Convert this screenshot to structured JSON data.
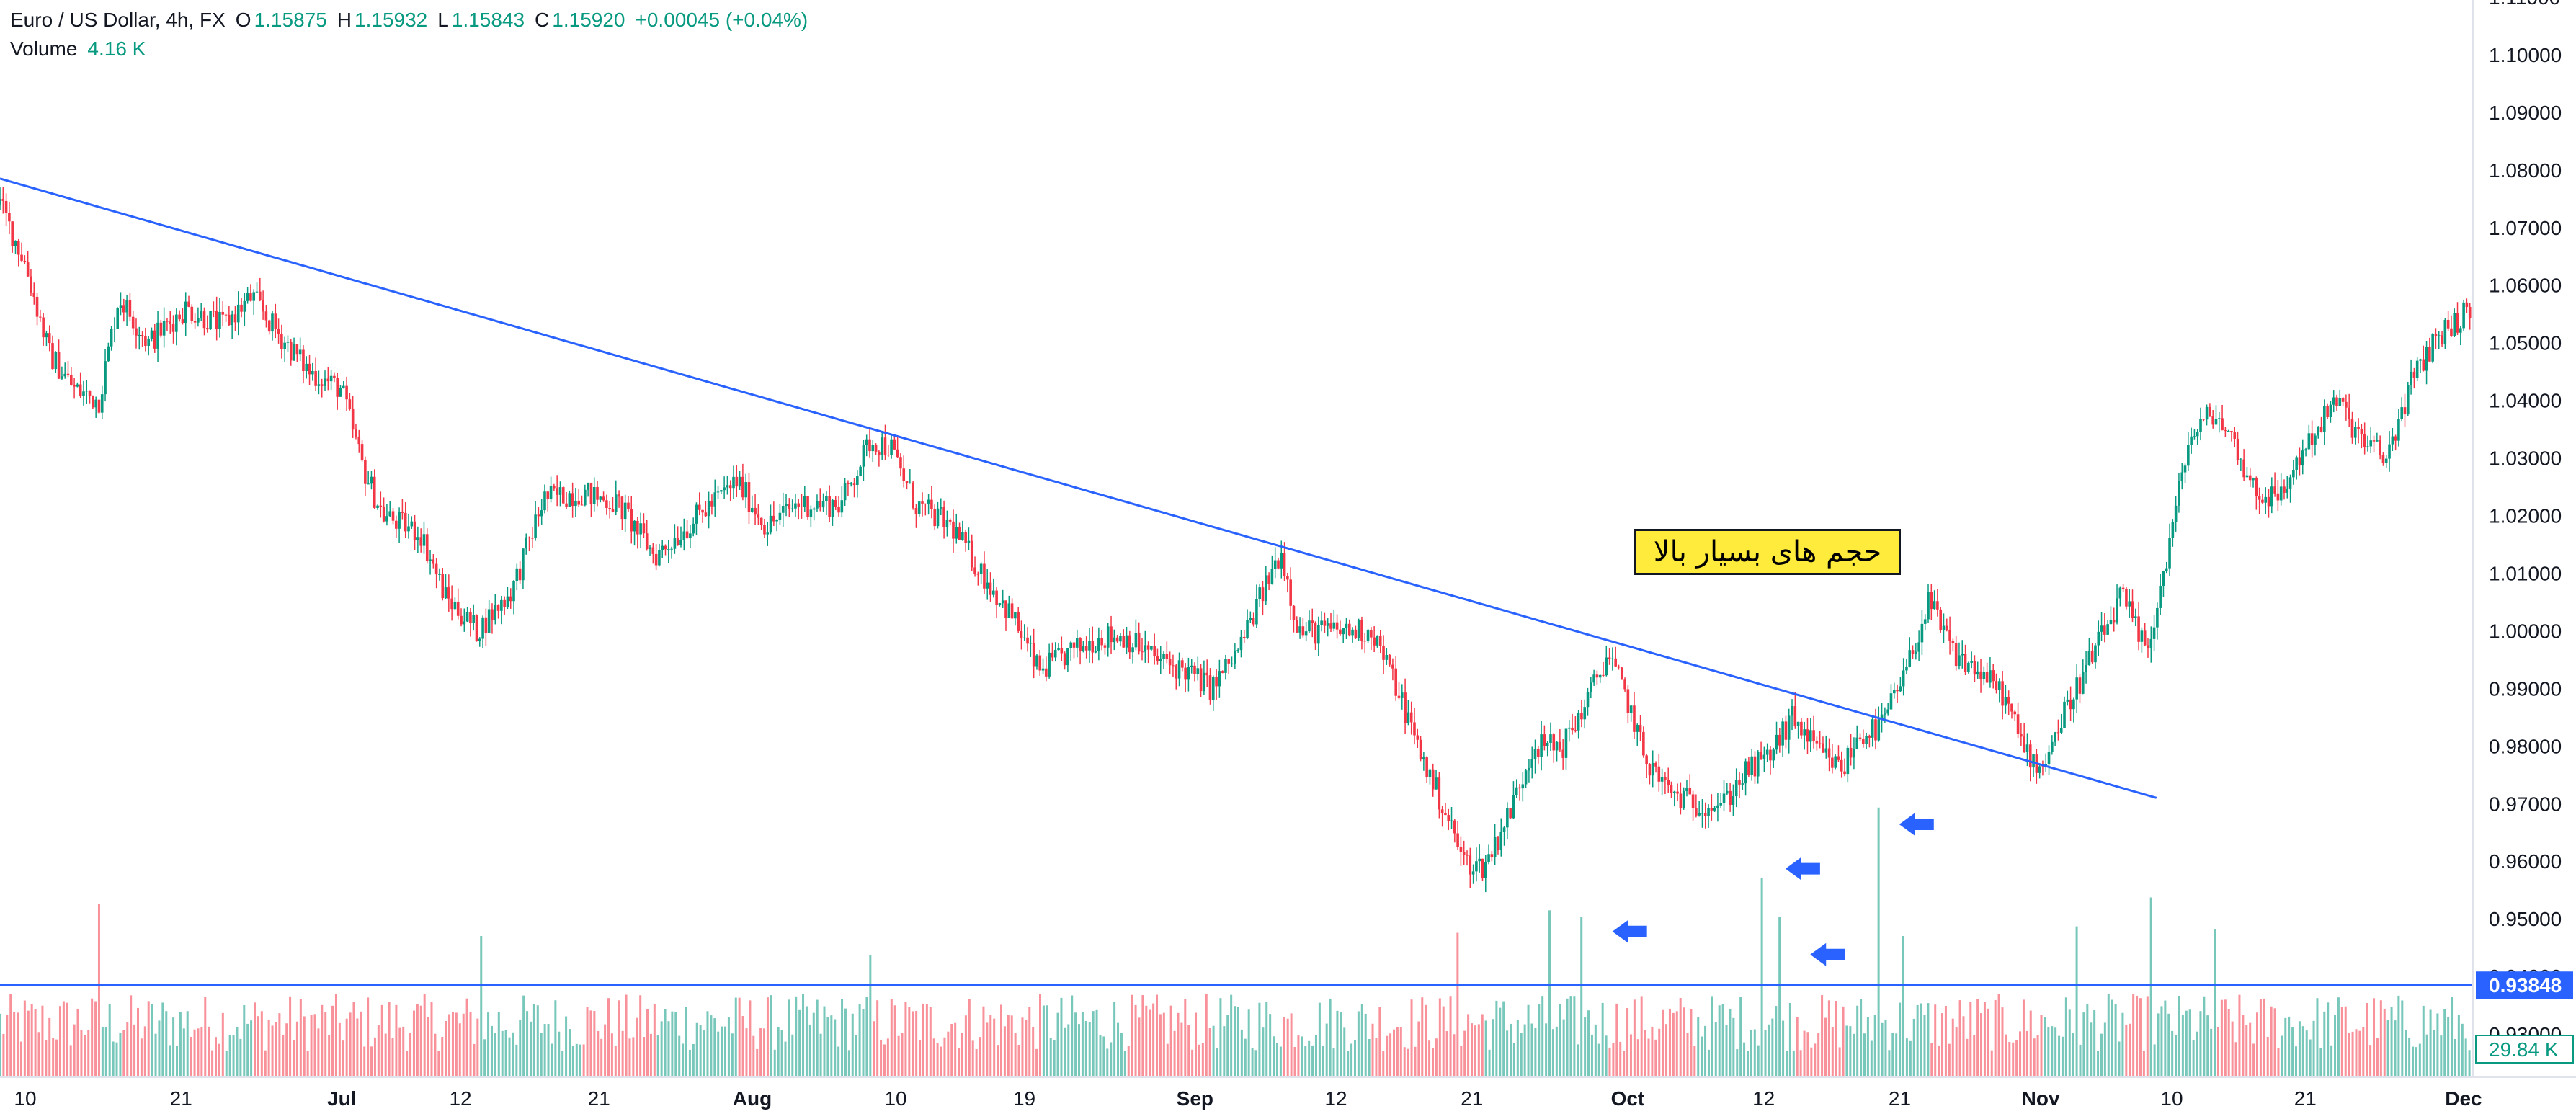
{
  "legend": {
    "symbol": "Euro / US Dollar, 4h, FX",
    "open_key": "O",
    "open": "1.15875",
    "high_key": "H",
    "high": "1.15932",
    "low_key": "L",
    "low": "1.15843",
    "close_key": "C",
    "close": "1.15920",
    "change": "+0.00045 (+0.04%)",
    "volume_label": "Volume",
    "volume_value": "4.16 K"
  },
  "annotation": {
    "text": "حجم های بسیار بالا"
  },
  "colors": {
    "up": "#089981",
    "down": "#f23645",
    "trendline": "#2962ff",
    "label_bg": "#2962ff",
    "annotation_bg": "#ffeb3b"
  },
  "chart_data": {
    "type": "candlestick",
    "symbol": "EURUSD",
    "timeframe": "4h",
    "price_axis": {
      "ticks": [
        "1.11000",
        "1.10000",
        "1.09000",
        "1.08000",
        "1.07000",
        "1.06000",
        "1.05000",
        "1.04000",
        "1.03000",
        "1.02000",
        "1.01000",
        "1.00000",
        "0.99000",
        "0.98000",
        "0.97000",
        "0.96000",
        "0.95000",
        "0.94000",
        "0.93000"
      ],
      "ylim": [
        0.9225,
        1.1095
      ],
      "horizontal_line_label": "0.93848",
      "volume_label": "29.84 K"
    },
    "time_axis": {
      "ticks": [
        {
          "label": "10",
          "t": 0
        },
        {
          "label": "21",
          "t": 0.063
        },
        {
          "label": "Jul",
          "t": 0.128,
          "bold": true
        },
        {
          "label": "12",
          "t": 0.176
        },
        {
          "label": "21",
          "t": 0.232
        },
        {
          "label": "Aug",
          "t": 0.294,
          "bold": true
        },
        {
          "label": "10",
          "t": 0.352
        },
        {
          "label": "19",
          "t": 0.404
        },
        {
          "label": "Sep",
          "t": 0.473,
          "bold": true
        },
        {
          "label": "12",
          "t": 0.53
        },
        {
          "label": "21",
          "t": 0.585
        },
        {
          "label": "Oct",
          "t": 0.648,
          "bold": true
        },
        {
          "label": "12",
          "t": 0.703
        },
        {
          "label": "21",
          "t": 0.758
        },
        {
          "label": "Nov",
          "t": 0.815,
          "bold": true
        },
        {
          "label": "10",
          "t": 0.868
        },
        {
          "label": "21",
          "t": 0.922
        },
        {
          "label": "Dec",
          "t": 0.986,
          "bold": true
        }
      ]
    },
    "price_path": [
      [
        0,
        1.074
      ],
      [
        0.01,
        1.064
      ],
      [
        0.02,
        1.048
      ],
      [
        0.03,
        1.042
      ],
      [
        0.04,
        1.04
      ],
      [
        0.048,
        1.058
      ],
      [
        0.06,
        1.05
      ],
      [
        0.075,
        1.056
      ],
      [
        0.09,
        1.053
      ],
      [
        0.102,
        1.058
      ],
      [
        0.11,
        1.053
      ],
      [
        0.125,
        1.045
      ],
      [
        0.138,
        1.042
      ],
      [
        0.147,
        1.028
      ],
      [
        0.155,
        1.02
      ],
      [
        0.17,
        1.017
      ],
      [
        0.18,
        1.006
      ],
      [
        0.193,
        1.0
      ],
      [
        0.207,
        1.007
      ],
      [
        0.22,
        1.023
      ],
      [
        0.235,
        1.024
      ],
      [
        0.25,
        1.022
      ],
      [
        0.265,
        1.013
      ],
      [
        0.28,
        1.019
      ],
      [
        0.298,
        1.026
      ],
      [
        0.31,
        1.018
      ],
      [
        0.322,
        1.022
      ],
      [
        0.34,
        1.022
      ],
      [
        0.352,
        1.033
      ],
      [
        0.36,
        1.032
      ],
      [
        0.37,
        1.022
      ],
      [
        0.385,
        1.018
      ],
      [
        0.397,
        1.01
      ],
      [
        0.41,
        1.002
      ],
      [
        0.42,
        0.993
      ],
      [
        0.432,
        0.996
      ],
      [
        0.445,
        0.999
      ],
      [
        0.455,
        0.999
      ],
      [
        0.468,
        0.995
      ],
      [
        0.48,
        0.993
      ],
      [
        0.49,
        0.99
      ],
      [
        0.5,
        0.996
      ],
      [
        0.508,
        1.004
      ],
      [
        0.518,
        1.014
      ],
      [
        0.525,
        1.0
      ],
      [
        0.54,
        1.0
      ],
      [
        0.555,
        1.0
      ],
      [
        0.565,
        0.99
      ],
      [
        0.575,
        0.978
      ],
      [
        0.585,
        0.968
      ],
      [
        0.592,
        0.96
      ],
      [
        0.6,
        0.959
      ],
      [
        0.61,
        0.968
      ],
      [
        0.62,
        0.98
      ],
      [
        0.632,
        0.98
      ],
      [
        0.642,
        0.988
      ],
      [
        0.65,
        0.996
      ],
      [
        0.658,
        0.988
      ],
      [
        0.665,
        0.978
      ],
      [
        0.675,
        0.972
      ],
      [
        0.685,
        0.97
      ],
      [
        0.697,
        0.97
      ],
      [
        0.705,
        0.975
      ],
      [
        0.715,
        0.978
      ],
      [
        0.725,
        0.985
      ],
      [
        0.735,
        0.979
      ],
      [
        0.745,
        0.976
      ],
      [
        0.752,
        0.982
      ],
      [
        0.76,
        0.983
      ],
      [
        0.77,
        0.992
      ],
      [
        0.78,
        1.005
      ],
      [
        0.79,
        0.996
      ],
      [
        0.8,
        0.993
      ],
      [
        0.81,
        0.989
      ],
      [
        0.818,
        0.98
      ],
      [
        0.825,
        0.976
      ],
      [
        0.835,
        0.986
      ],
      [
        0.843,
        0.993
      ],
      [
        0.85,
        0.999
      ],
      [
        0.858,
        1.006
      ],
      [
        0.868,
        0.996
      ],
      [
        0.875,
        1.01
      ],
      [
        0.885,
        1.033
      ],
      [
        0.895,
        1.038
      ],
      [
        0.903,
        1.033
      ],
      [
        0.912,
        1.024
      ],
      [
        0.922,
        1.023
      ],
      [
        0.932,
        1.032
      ],
      [
        0.945,
        1.04
      ],
      [
        0.955,
        1.033
      ],
      [
        0.965,
        1.03
      ],
      [
        0.975,
        1.043
      ],
      [
        0.985,
        1.051
      ],
      [
        1.0,
        1.056
      ]
    ],
    "trendline": {
      "from": [
        0,
        1.0785
      ],
      "to": [
        0.872,
        0.971
      ]
    },
    "horizontal_line": {
      "price": 0.93848
    },
    "volume_spikes": [
      {
        "t": 0.04,
        "v": 0.54
      },
      {
        "t": 0.195,
        "v": 0.44
      },
      {
        "t": 0.352,
        "v": 0.38
      },
      {
        "t": 0.59,
        "v": 0.45
      },
      {
        "t": 0.627,
        "v": 0.52
      },
      {
        "t": 0.64,
        "v": 0.5
      },
      {
        "t": 0.713,
        "v": 0.62
      },
      {
        "t": 0.72,
        "v": 0.5
      },
      {
        "t": 0.76,
        "v": 0.84
      },
      {
        "t": 0.77,
        "v": 0.44
      },
      {
        "t": 0.84,
        "v": 0.47
      },
      {
        "t": 0.87,
        "v": 0.56
      },
      {
        "t": 0.895,
        "v": 0.46
      }
    ],
    "arrows": [
      {
        "t": 0.652,
        "price": 0.9478
      },
      {
        "t": 0.722,
        "price": 0.9587
      },
      {
        "t": 0.732,
        "price": 0.9438
      },
      {
        "t": 0.768,
        "price": 0.9664
      }
    ]
  }
}
